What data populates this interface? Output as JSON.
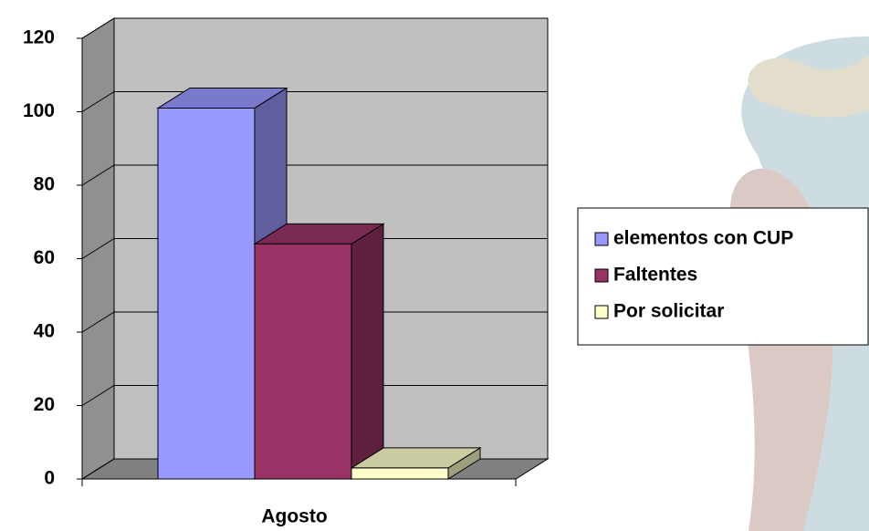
{
  "chart_data": {
    "type": "bar3d",
    "categories": [
      "Agosto"
    ],
    "series": [
      {
        "name": "elementos con CUP",
        "color": "#9999ff",
        "values": [
          101
        ]
      },
      {
        "name": "Faltentes",
        "color": "#993366",
        "values": [
          64
        ]
      },
      {
        "name": "Por solicitar",
        "color": "#ffffcc",
        "values": [
          3
        ]
      }
    ],
    "ylim": [
      0,
      120
    ],
    "yticks": [
      0,
      20,
      40,
      60,
      80,
      100,
      120
    ],
    "grid": true,
    "legend": "right"
  }
}
